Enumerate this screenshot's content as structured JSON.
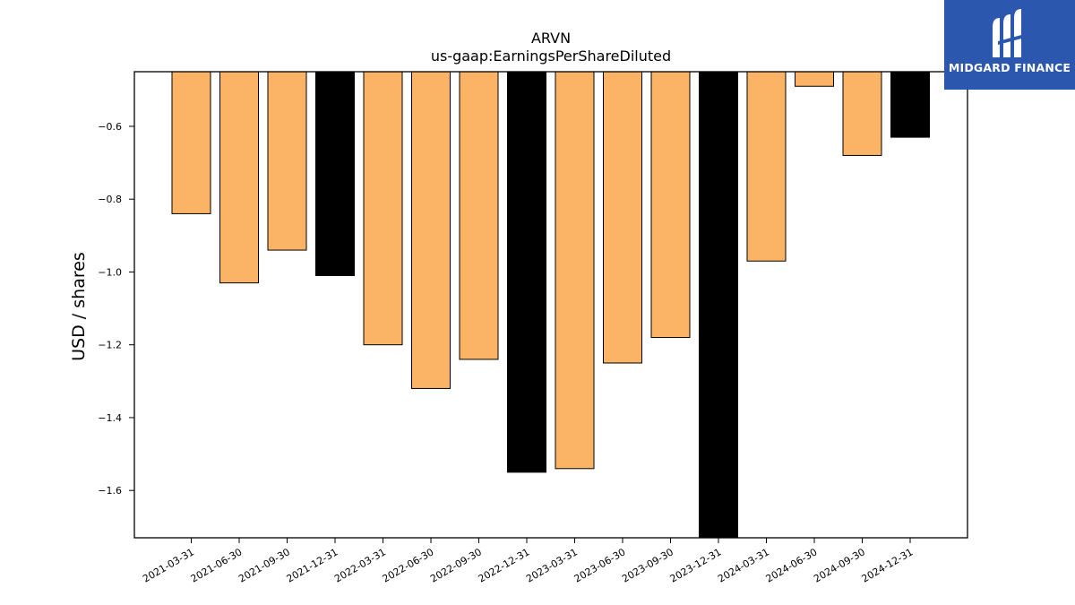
{
  "chart_data": {
    "type": "bar",
    "title": "ARVN",
    "subtitle": "us-gaap:EarningsPerShareDiluted",
    "xlabel": "",
    "ylabel": "USD / shares",
    "ylim": [
      -1.73,
      -0.45
    ],
    "yticks": [
      -0.6,
      -0.8,
      -1.0,
      -1.2,
      -1.4,
      -1.6
    ],
    "grid": false,
    "categories": [
      "2021-03-31",
      "2021-06-30",
      "2021-09-30",
      "2021-12-31",
      "2022-03-31",
      "2022-06-30",
      "2022-09-30",
      "2022-12-31",
      "2023-03-31",
      "2023-06-30",
      "2023-09-30",
      "2023-12-31",
      "2024-03-31",
      "2024-06-30",
      "2024-09-30",
      "2024-12-31"
    ],
    "values": [
      -0.84,
      -1.03,
      -0.94,
      -1.01,
      -1.2,
      -1.32,
      -1.24,
      -1.55,
      -1.54,
      -1.25,
      -1.18,
      -1.73,
      -0.97,
      -0.49,
      -0.68,
      -0.63
    ],
    "quarter_color": "#fbb365",
    "year_end_color": "#000000",
    "year_end_categories": [
      "2021-12-31",
      "2022-12-31",
      "2023-12-31",
      "2024-12-31"
    ]
  },
  "logo": {
    "text": "MIDGARD FINANCE",
    "background": "#2b57ae"
  }
}
